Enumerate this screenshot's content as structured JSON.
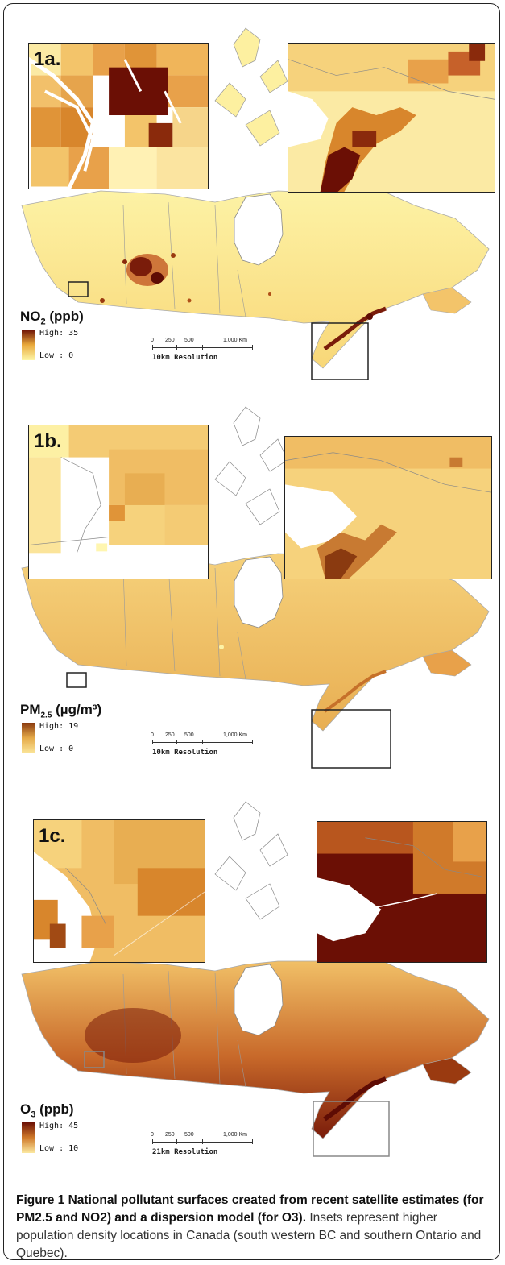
{
  "figure": {
    "panels": [
      {
        "id": "1a",
        "label": "1a.",
        "legend_title_main": "NO",
        "legend_title_sub": "2",
        "legend_title_unit": " (ppb)",
        "high_label": "High: 35",
        "low_label": "Low : 0",
        "resolution": "10km Resolution",
        "scale_ticks": [
          "0",
          "250",
          "500",
          "1,000 Km"
        ],
        "colors": {
          "low": "#fdf6a8",
          "mid": "#e9a93b",
          "high": "#6b0f05"
        }
      },
      {
        "id": "1b",
        "label": "1b.",
        "legend_title_main": "PM",
        "legend_title_sub": "2.5",
        "legend_title_unit": " (µg/m³)",
        "high_label": "High: 19",
        "low_label": "Low : 0",
        "resolution": "10km Resolution",
        "scale_ticks": [
          "0",
          "250",
          "500",
          "1,000 Km"
        ],
        "colors": {
          "low": "#fbe69a",
          "mid": "#e5aa48",
          "high": "#8a3a10"
        }
      },
      {
        "id": "1c",
        "label": "1c.",
        "legend_title_main": "O",
        "legend_title_sub": "3",
        "legend_title_unit": " (ppb)",
        "high_label": "High: 45",
        "low_label": "Low : 10",
        "resolution": "21km Resolution",
        "scale_ticks": [
          "0",
          "250",
          "500",
          "1,000 Km"
        ],
        "colors": {
          "low": "#fbe8a0",
          "mid": "#d07a2a",
          "high": "#6b0f05"
        }
      }
    ],
    "caption": {
      "title": "Figure 1 National pollutant surfaces created from recent satellite estimates (for PM2.5 and NO2) and a dispersion model (for O3).",
      "body": " Insets represent higher population density locations in Canada (south western BC and southern Ontario and Quebec)."
    }
  }
}
